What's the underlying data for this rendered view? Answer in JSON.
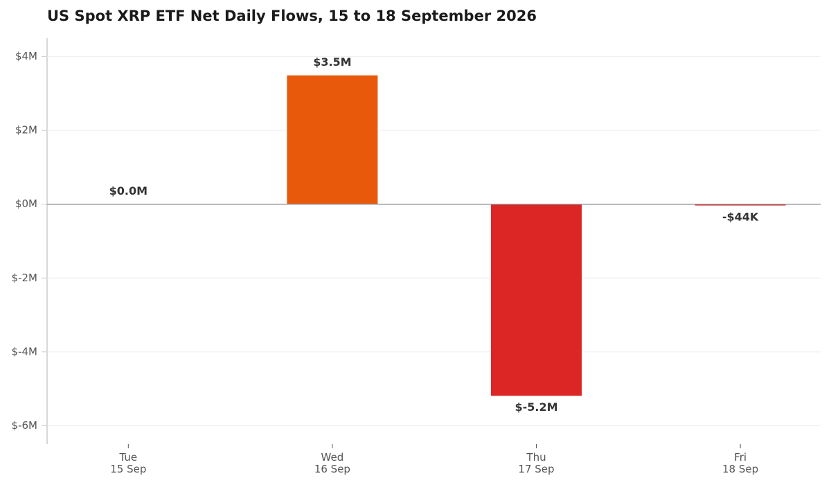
{
  "chart_data": {
    "type": "bar",
    "title": "US Spot XRP ETF Net Daily Flows, 15 to 18 September 2026",
    "categories": [
      "Tue\n15 Sep",
      "Wed\n16 Sep",
      "Thu\n17 Sep",
      "Fri\n18 Sep"
    ],
    "values": [
      0,
      3.5,
      -5.2,
      -0.044
    ],
    "value_labels": [
      "$0.0M",
      "$3.5M",
      "$-5.2M",
      "-$44K"
    ],
    "colors": [
      "#e8590c",
      "#e8590c",
      "#dc2626",
      "#dc2626"
    ],
    "ylim": [
      -6.5,
      4.5
    ],
    "yticks": [
      {
        "value": -6,
        "label": "$-6M"
      },
      {
        "value": -4,
        "label": "$-4M"
      },
      {
        "value": -2,
        "label": "$-2M"
      },
      {
        "value": 0,
        "label": "$0M"
      },
      {
        "value": 2,
        "label": "$2M"
      },
      {
        "value": 4,
        "label": "$4M"
      }
    ],
    "grid": true
  }
}
